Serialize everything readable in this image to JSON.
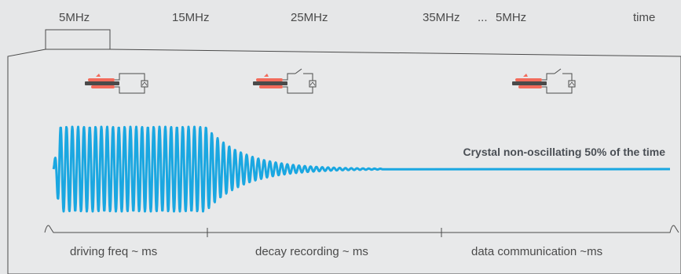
{
  "timeline_labels": [
    "5MHz",
    "15MHz",
    "25MHz",
    "35MHz",
    "...",
    "5MHz",
    "time"
  ],
  "annotation": "Crystal non-oscillating 50% of the time",
  "phases": [
    "driving freq ~ ms",
    "decay recording ~ ms",
    "data communication ~ms"
  ],
  "switch_states": [
    "closed",
    "open",
    "open"
  ],
  "colors": {
    "background": "#e6e7e8",
    "panel": "#e8e9ea",
    "outline": "#4a4a4a",
    "wave": "#1aa7e1",
    "crystal_electrode": "#f26b5b",
    "crystal_body": "#4a4a4a"
  }
}
